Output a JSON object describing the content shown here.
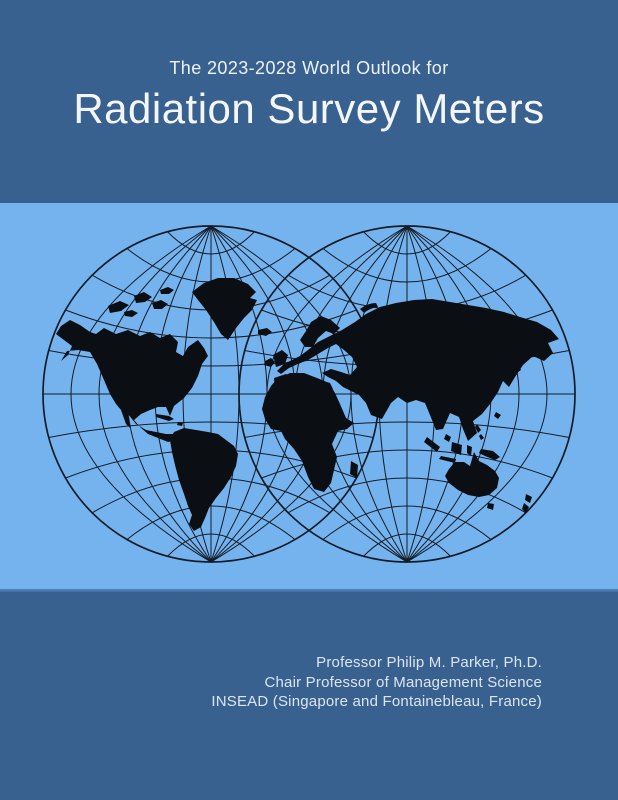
{
  "cover": {
    "series_title": "The 2023-2028 World Outlook for",
    "product_title": "Radiation Survey Meters",
    "credits": {
      "line1": "Professor Philip M. Parker, Ph.D.",
      "line2": "Chair Professor of Management Science",
      "line3": "INSEAD (Singapore and Fontainebleau, France)"
    }
  },
  "map": {
    "icon": "double-hemisphere-world-map-icon"
  },
  "colors": {
    "background": "#38618f",
    "band": "#75b3ef",
    "ink": "#141c26",
    "land": "#0b0e12",
    "title_text": "#f4f7fa",
    "credits_text": "#dbe5f0",
    "band_edge": "#4e7db6"
  }
}
